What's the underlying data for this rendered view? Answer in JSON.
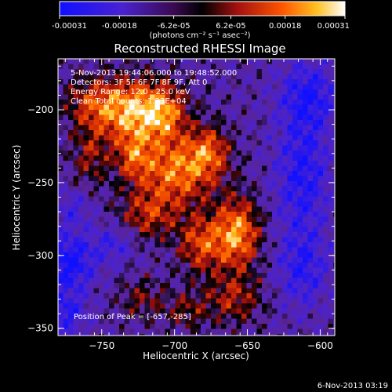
{
  "chart_data": {
    "type": "heatmap",
    "title": "Reconstructed RHESSI Image",
    "xlabel": "Heliocentric X (arcsec)",
    "ylabel": "Heliocentric Y (arcsec)",
    "xlim": [
      -780,
      -590
    ],
    "ylim": [
      -355,
      -165
    ],
    "xticks": [
      -750,
      -700,
      -650,
      -600
    ],
    "yticks": [
      -200,
      -250,
      -300,
      -350
    ],
    "colorbar": {
      "ticks": [
        "-0.00031",
        "-0.00018",
        "-6.2e-05",
        "6.2e-05",
        "0.00018",
        "0.00031"
      ],
      "tick_values": [
        -0.00031,
        -0.00018,
        -6.2e-05,
        6.2e-05,
        0.00018,
        0.00031
      ],
      "range": [
        -0.00031,
        0.00031
      ],
      "unit_label": "(photons cm⁻² s⁻¹ asec⁻²)"
    },
    "colors": {
      "negative": "#1a22ff",
      "zero": "#000000",
      "low_positive": "#b01818",
      "mid_positive": "#ff6a00",
      "high_positive": "#ffffff",
      "background_negative": "#5a24a8"
    },
    "annotations": [
      "5-Nov-2013 19:44:06.000 to 19:48:52.000",
      "Detectors: 3F 5F 6F 7F 8F 9F, Att 0",
      "Energy Range: 12.0 - 25.0 keV",
      "Clean     Total counts: 1.23E+04"
    ],
    "peak_label": "Position of Peak = [-657,-285]",
    "peak": {
      "x": -657,
      "y": -285
    },
    "timestamp": "6-Nov-2013 03:19",
    "sources": [
      {
        "x": -734,
        "y": -200,
        "sx": 16,
        "sy": 15,
        "amp": 0.00031
      },
      {
        "x": -708,
        "y": -202,
        "sx": 12,
        "sy": 14,
        "amp": 0.00027
      },
      {
        "x": -698,
        "y": -242,
        "sx": 18,
        "sy": 16,
        "amp": 0.00028
      },
      {
        "x": -728,
        "y": -232,
        "sx": 9,
        "sy": 12,
        "amp": 0.0002
      },
      {
        "x": -676,
        "y": -228,
        "sx": 10,
        "sy": 12,
        "amp": 0.0002
      },
      {
        "x": -657,
        "y": -285,
        "sx": 11,
        "sy": 17,
        "amp": 0.00031
      },
      {
        "x": -682,
        "y": -292,
        "sx": 11,
        "sy": 14,
        "amp": 0.00022
      },
      {
        "x": -718,
        "y": -272,
        "sx": 14,
        "sy": 12,
        "amp": 0.00018
      },
      {
        "x": -660,
        "y": -330,
        "sx": 14,
        "sy": 12,
        "amp": 0.00016
      },
      {
        "x": -758,
        "y": -232,
        "sx": 9,
        "sy": 14,
        "amp": 0.00014
      },
      {
        "x": -722,
        "y": -330,
        "sx": 11,
        "sy": 10,
        "amp": 0.00012
      },
      {
        "x": -692,
        "y": -338,
        "sx": 10,
        "sy": 9,
        "amp": 0.00012
      },
      {
        "x": -760,
        "y": -195,
        "sx": 12,
        "sy": 12,
        "amp": 0.00014
      },
      {
        "x": -612,
        "y": -245,
        "sx": 13,
        "sy": 30,
        "amp": -0.00018
      },
      {
        "x": -608,
        "y": -190,
        "sx": 14,
        "sy": 16,
        "amp": -0.00017
      },
      {
        "x": -612,
        "y": -310,
        "sx": 12,
        "sy": 18,
        "amp": -0.00015
      },
      {
        "x": -772,
        "y": -305,
        "sx": 12,
        "sy": 14,
        "amp": -0.00022
      },
      {
        "x": -775,
        "y": -340,
        "sx": 10,
        "sy": 10,
        "amp": -0.00016
      },
      {
        "x": -742,
        "y": -292,
        "sx": 10,
        "sy": 9,
        "amp": -0.00012
      },
      {
        "x": -770,
        "y": -268,
        "sx": 9,
        "sy": 9,
        "amp": -0.0001
      }
    ]
  }
}
